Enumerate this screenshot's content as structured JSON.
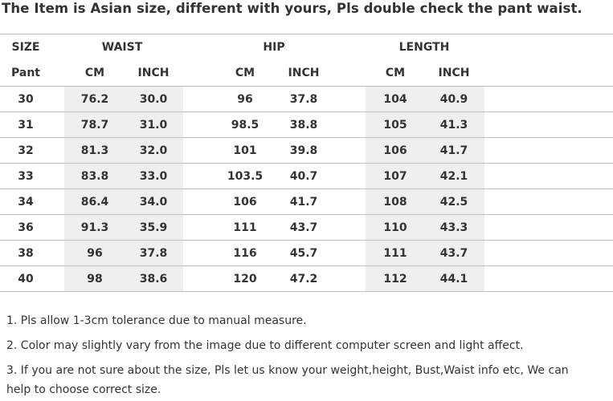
{
  "headline": "The Item is Asian size, different with yours, Pls double check the pant waist.",
  "size_table": {
    "group_headers": [
      "SIZE",
      "WAIST",
      "HIP",
      "LENGTH"
    ],
    "sub_headers": [
      "Pant",
      "CM",
      "INCH",
      "CM",
      "INCH",
      "CM",
      "INCH"
    ],
    "rows": [
      [
        "30",
        "76.2",
        "30.0",
        "96",
        "37.8",
        "104",
        "40.9"
      ],
      [
        "31",
        "78.7",
        "31.0",
        "98.5",
        "38.8",
        "105",
        "41.3"
      ],
      [
        "32",
        "81.3",
        "32.0",
        "101",
        "39.8",
        "106",
        "41.7"
      ],
      [
        "33",
        "83.8",
        "33.0",
        "103.5",
        "40.7",
        "107",
        "42.1"
      ],
      [
        "34",
        "86.4",
        "34.0",
        "106",
        "41.7",
        "108",
        "42.5"
      ],
      [
        "36",
        "91.3",
        "35.9",
        "111",
        "43.7",
        "110",
        "43.3"
      ],
      [
        "38",
        "96",
        "37.8",
        "116",
        "45.7",
        "111",
        "43.7"
      ],
      [
        "40",
        "98",
        "38.6",
        "120",
        "47.2",
        "112",
        "44.1"
      ]
    ]
  },
  "notes": [
    "1.  Pls allow 1-3cm tolerance due to manual measure.",
    "2.  Color may slightly vary from the image due to different computer screen and light affect.",
    "3.  If you are not sure about the size, Pls let us know your weight,height, Bust,Waist info etc, We can",
    "help to choose correct size."
  ],
  "colors": {
    "band": "#efefef",
    "rule": "#bdbdbd",
    "text": "#333333"
  }
}
